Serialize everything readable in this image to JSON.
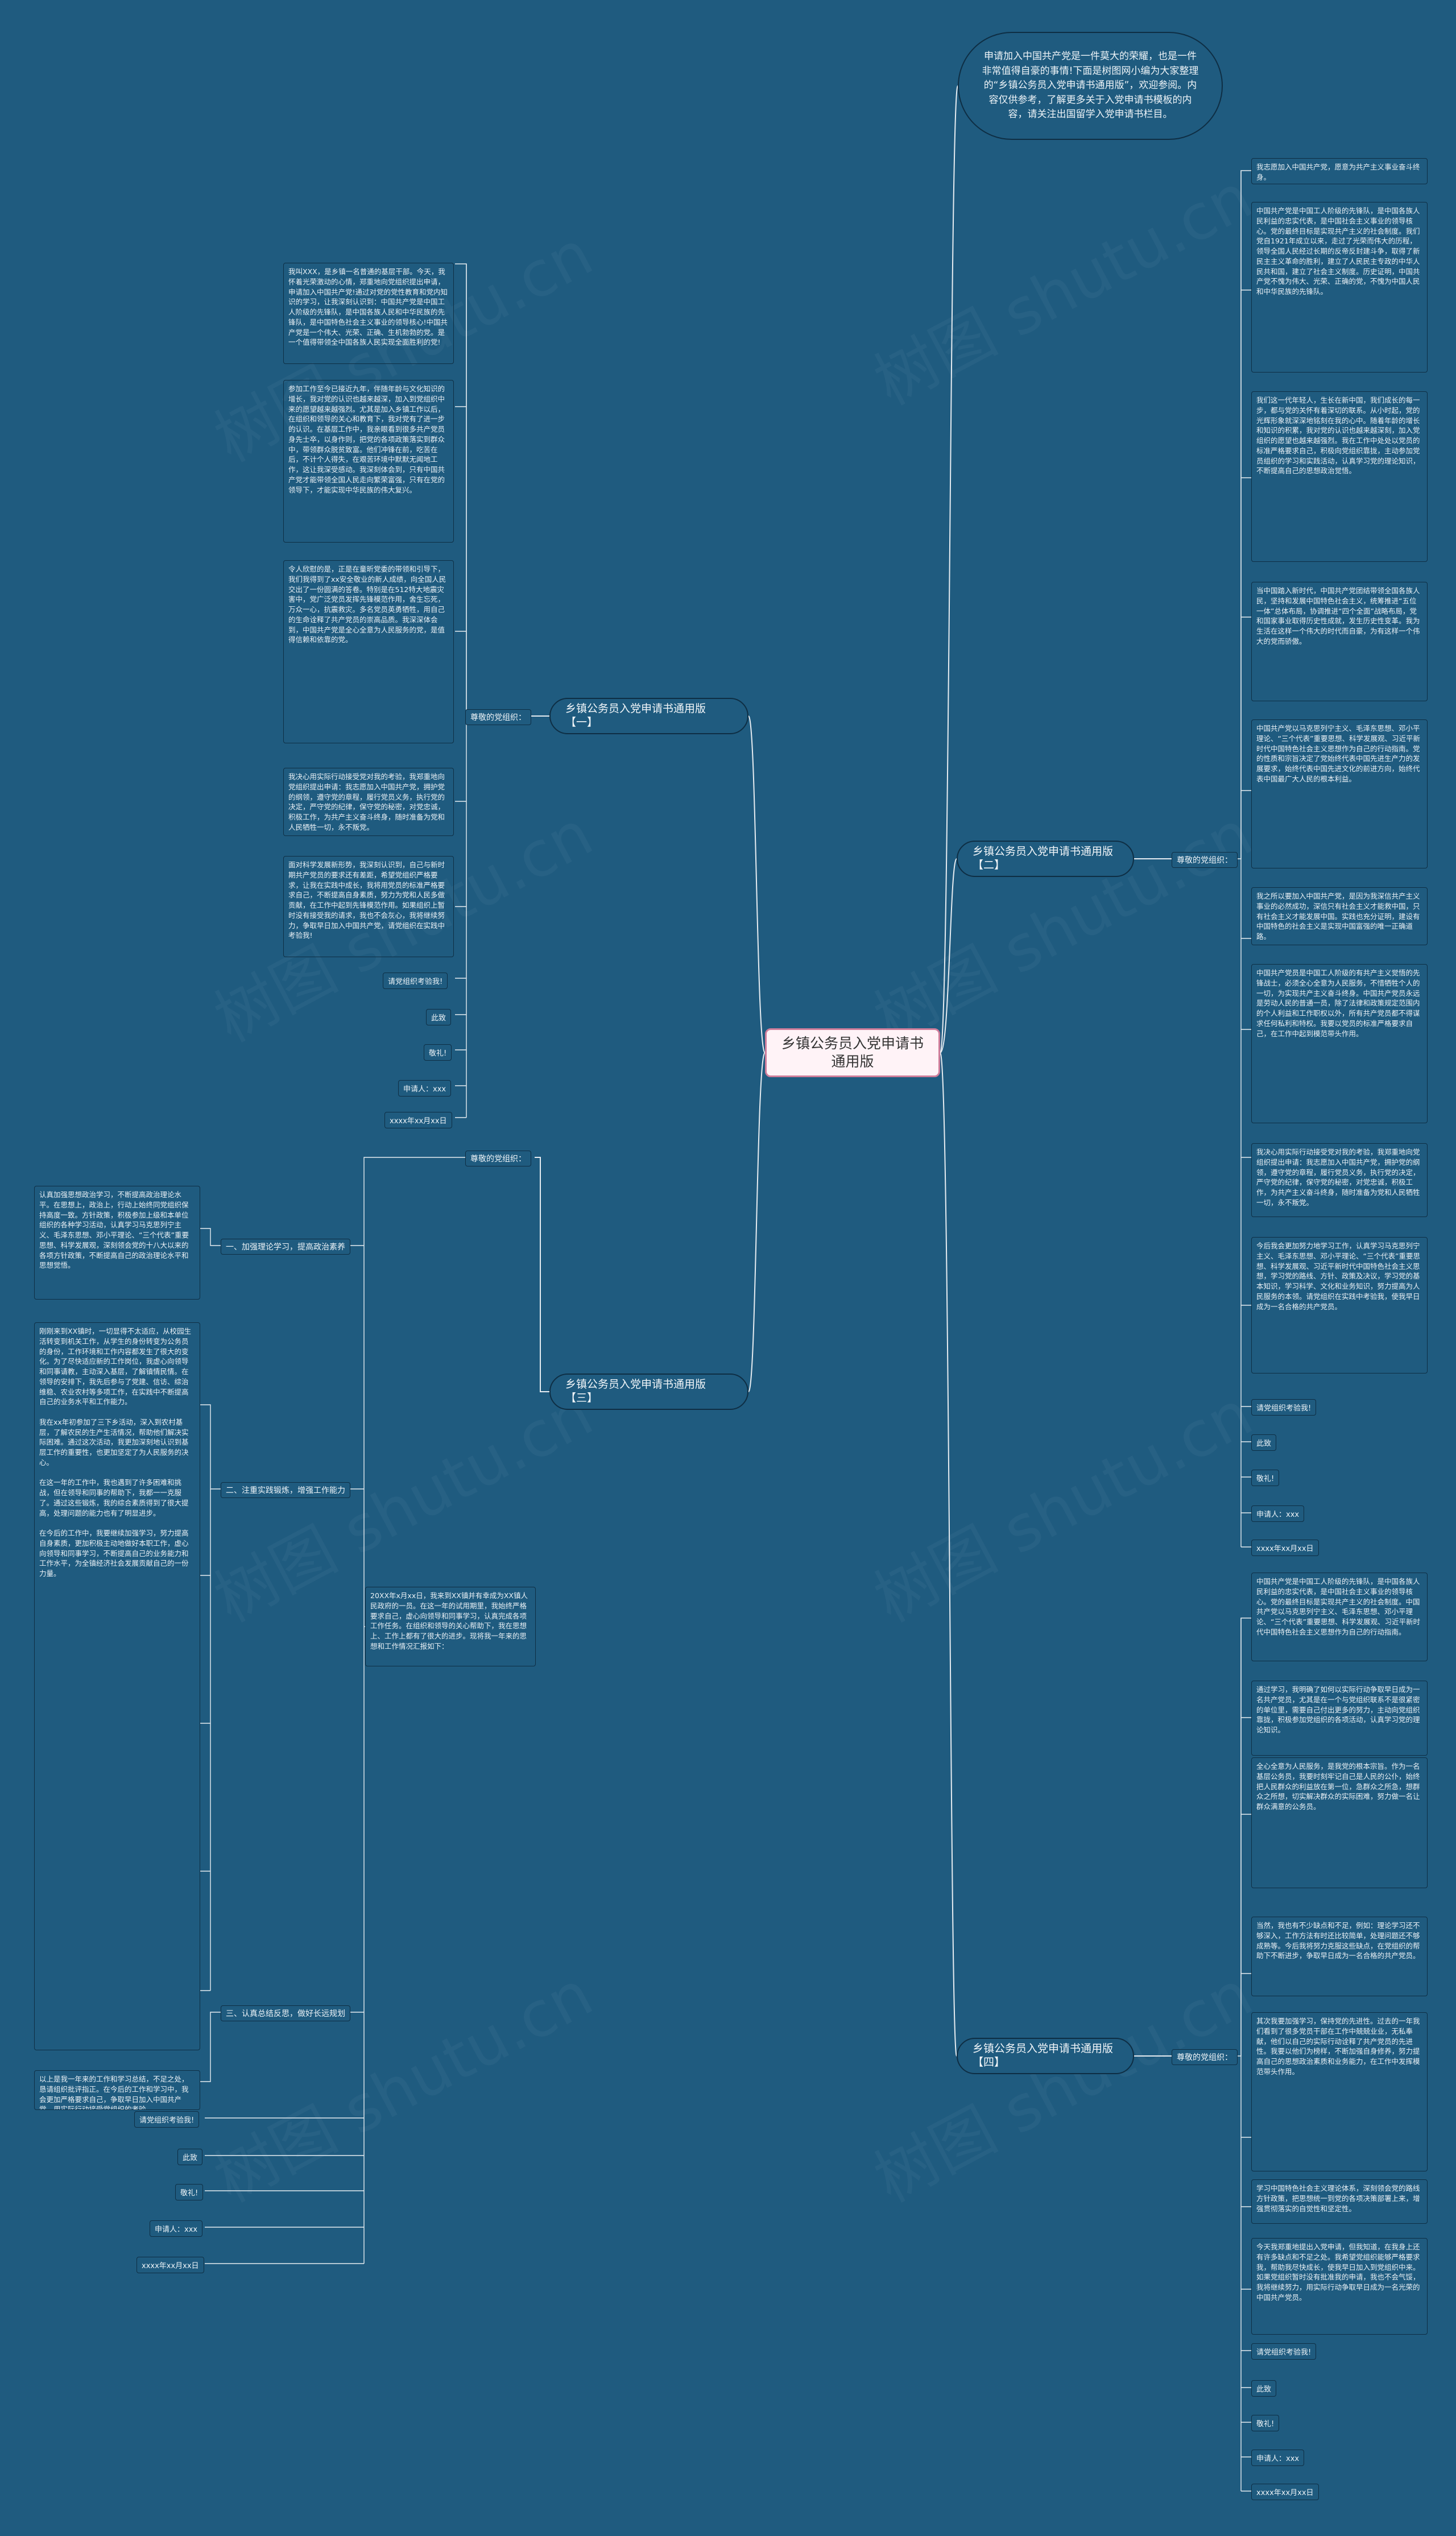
{
  "title": "乡镇公务员入党申请书通用版",
  "intro": "申请加入中国共产党是一件莫大的荣耀，也是一件非常值得自豪的事情!下面是树图网小编为大家整理的“乡镇公务员入党申请书通用版”，欢迎参阅。内容仅供参考，了解更多关于入党申请书模板的内容，请关注出国留学入党申请书栏目。",
  "branches": [
    {
      "label": "乡镇公务员入党申请书通用版【一】",
      "sub": "尊敬的党组织：",
      "paragraphs": [
        "我叫XXX，是乡镇一名普通的基层干部。今天，我怀着光荣激动的心情，郑重地向党组织提出申请，申请加入中国共产党!通过对党的党性教育和党内知识的学习，让我深刻认识到：中国共产党是中国工人阶级的先锋队，是中国各族人民和中华民族的先锋队，是中国特色社会主义事业的领导核心!中国共产党是一个伟大、光荣、正确、生机勃勃的党。是一个值得带领全中国各族人民实现全面胜利的党!",
        "参加工作至今已接近九年，伴随年龄与文化知识的增长，我对党的认识也越来越深，加入到党组织中来的愿望越来越强烈。尤其是加入乡镇工作以后，在组织和领导的关心和教育下，我对党有了进一步的认识。在基层工作中，我亲眼看到很多共产党员身先士卒，以身作则，把党的各项政策落实到群众中，带领群众脱贫致富。他们冲锋在前，吃苦在后，不计个人得失，在艰苦环境中默默无闻地工作，这让我深受感动。我深刻体会到，只有中国共产党才能带领全国人民走向繁荣富强，只有在党的领导下，才能实现中华民族的伟大复兴。",
        "令人欣慰的是，正是在童昕党委的带领和引导下，我们我得到了xx安全敬业的新人成绩，向全国人民交出了一份圆满的答卷。特别是在512特大地震灾害中，党广泛党员发挥先锋模范作用，舍生忘死，万众一心，抗震救灾。多名党员英勇牺牲，用自己的生命诠释了共产党员的崇高品质。我深深体会到，中国共产党是全心全意为人民服务的党，是值得信赖和依靠的党。",
        "我决心用实际行动接受党对我的考验，我郑重地向党组织提出申请：我志愿加入中国共产党，拥护党的纲领，遵守党的章程，履行党员义务，执行党的决定，严守党的纪律，保守党的秘密，对党忠诚，积极工作，为共产主义奋斗终身，随时准备为党和人民牺牲一切，永不叛党。",
        "面对科学发展新形势，我深刻认识到，自己与新时期共产党员的要求还有差距，希望党组织严格要求，让我在实践中成长，我将用党员的标准严格要求自己，不断提高自身素质，努力为党和人民多做贡献，在工作中起到先锋模范作用。如果组织上暂时没有接受我的请求，我也不会灰心，我将继续努力，争取早日加入中国共产党，请党组织在实践中考验我!"
      ],
      "closing": [
        "请党组织考验我!",
        "此致",
        "敬礼!",
        "申请人：xxx",
        "xxxx年xx月xx日"
      ]
    },
    {
      "label": "乡镇公务员入党申请书通用版【二】",
      "sub": "尊敬的党组织：",
      "paragraphs": [
        "我志愿加入中国共产党，愿意为共产主义事业奋斗终身。",
        "中国共产党是中国工人阶级的先锋队，是中国各族人民利益的忠实代表，是中国社会主义事业的领导核心。党的最终目标是实现共产主义的社会制度。我们党自1921年成立以来，走过了光荣而伟大的历程，领导全国人民经过长期的反帝反封建斗争，取得了新民主主义革命的胜利，建立了人民民主专政的中华人民共和国，建立了社会主义制度。历史证明，中国共产党不愧为伟大、光荣、正确的党，不愧为中国人民和中华民族的先锋队。",
        "我们这一代年轻人，生长在新中国，我们成长的每一步，都与党的关怀有着深切的联系。从小时起，党的光辉形象就深深地铭刻在我的心中。随着年龄的增长和知识的积累，我对党的认识也越来越深刻，加入党组织的愿望也越来越强烈。我在工作中处处以党员的标准严格要求自己，积极向党组织靠拢，主动参加党员组织的学习和实践活动，认真学习党的理论知识，不断提高自己的思想政治觉悟。",
        "当中国踏入新时代，中国共产党团结带领全国各族人民，坚持和发展中国特色社会主义，统筹推进“五位一体”总体布局，协调推进“四个全面”战略布局，党和国家事业取得历史性成就，发生历史性变革。我为生活在这样一个伟大的时代而自豪，为有这样一个伟大的党而骄傲。",
        "中国共产党以马克思列宁主义、毛泽东思想、邓小平理论、“三个代表”重要思想、科学发展观、习近平新时代中国特色社会主义思想作为自己的行动指南。党的性质和宗旨决定了党始终代表中国先进生产力的发展要求，始终代表中国先进文化的前进方向，始终代表中国最广大人民的根本利益。",
        "我之所以要加入中国共产党，是因为我深信共产主义事业的必然成功，深信只有社会主义才能救中国，只有社会主义才能发展中国。实践也充分证明，建设有中国特色的社会主义是实现中国富强的唯一正确道路。",
        "中国共产党员是中国工人阶级的有共产主义觉悟的先锋战士，必须全心全意为人民服务，不惜牺牲个人的一切，为实现共产主义奋斗终身。中国共产党员永远是劳动人民的普通一员，除了法律和政策规定范围内的个人利益和工作职权以外，所有共产党员都不得谋求任何私利和特权。我要以党员的标准严格要求自己，在工作中起到模范带头作用。",
        "我决心用实际行动接受党对我的考验，我郑重地向党组织提出申请：我志愿加入中国共产党，拥护党的纲领，遵守党的章程，履行党员义务，执行党的决定，严守党的纪律，保守党的秘密，对党忠诚，积极工作，为共产主义奋斗终身，随时准备为党和人民牺牲一切，永不叛党。",
        "今后我会更加努力地学习工作，认真学习马克思列宁主义、毛泽东思想、邓小平理论、“三个代表”重要思想、科学发展观、习近平新时代中国特色社会主义思想，学习党的路线、方针、政策及决议，学习党的基本知识，学习科学、文化和业务知识，努力提高为人民服务的本领。请党组织在实践中考验我，使我早日成为一名合格的共产党员。"
      ],
      "closing": [
        "请党组织考验我!",
        "此致",
        "敬礼!",
        "申请人：xxx",
        "xxxx年xx月xx日"
      ]
    },
    {
      "label": "乡镇公务员入党申请书通用版【三】",
      "sub": "尊敬的党组织：",
      "intro": "20XX年x月xx日，我来到XX镇并有幸成为XX镇人民政府的一员。在这一年的试用期里，我始终严格要求自己，虚心向领导和同事学习，认真完成各项工作任务。在组织和领导的关心帮助下，我在思想上、工作上都有了很大的进步。现将我一年来的思想和工作情况汇报如下：",
      "sections": [
        {
          "label": "一、加强理论学习，提高政治素养",
          "text": "认真加强思想政治学习，不断提高政治理论水平。在思想上，政治上，行动上始终同党组织保持高度一致。方针政策，积极参加上级和本单位组织的各种学习活动，认真学习马克思列宁主义、毛泽东思想、邓小平理论、“三个代表”重要思想、科学发展观，深刻领会党的十八大以来的各项方针政策，不断提高自己的政治理论水平和思想觉悟。"
        },
        {
          "label": "二、注重实践锻炼，增强工作能力",
          "text": "刚刚来到XX镇时，一切显得不太适应，从校园生活转变到机关工作，从学生的身份转变为公务员的身份，工作环境和工作内容都发生了很大的变化。为了尽快适应新的工作岗位，我虚心向领导和同事请教，主动深入基层，了解镇情民情。在领导的安排下，我先后参与了党建、信访、综治维稳、农业农村等多项工作，在实践中不断提高自己的业务水平和工作能力。\n\n我在xx年初参加了三下乡活动，深入到农村基层，了解农民的生产生活情况，帮助他们解决实际困难。通过这次活动，我更加深刻地认识到基层工作的重要性，也更加坚定了为人民服务的决心。\n\n在这一年的工作中，我也遇到了许多困难和挑战，但在领导和同事的帮助下，我都一一克服了。通过这些锻炼，我的综合素质得到了很大提高，处理问题的能力也有了明显进步。\n\n在今后的工作中，我要继续加强学习，努力提高自身素质，更加积极主动地做好本职工作，虚心向领导和同事学习，不断提高自己的业务能力和工作水平，为全镇经济社会发展贡献自己的一份力量。"
        },
        {
          "label": "三、认真总结反思，做好长远规划",
          "text": "以上是我一年来的工作和学习总结，不足之处，恳请组织批评指正。在今后的工作和学习中，我会更加严格要求自己，争取早日加入中国共产党，用实际行动接受党组织的考验。"
        }
      ],
      "closing": [
        "请党组织考验我!",
        "此致",
        "敬礼!",
        "申请人：xxx",
        "xxxx年xx月xx日"
      ]
    },
    {
      "label": "乡镇公务员入党申请书通用版【四】",
      "sub": "尊敬的党组织：",
      "paragraphs": [
        "中国共产党是中国工人阶级的先锋队，是中国各族人民利益的忠实代表，是中国社会主义事业的领导核心。党的最终目标是实现共产主义的社会制度。中国共产党以马克思列宁主义、毛泽东思想、邓小平理论、“三个代表”重要思想、科学发展观、习近平新时代中国特色社会主义思想作为自己的行动指南。",
        "通过学习，我明确了如何以实际行动争取早日成为一名共产党员，尤其是在一个与党组织联系不是很紧密的单位里，需要自己付出更多的努力，主动向党组织靠拢，积极参加党组织的各项活动，认真学习党的理论知识。",
        "全心全意为人民服务，是我党的根本宗旨。作为一名基层公务员，我要时刻牢记自己是人民的公仆，始终把人民群众的利益放在第一位，急群众之所急，想群众之所想，切实解决群众的实际困难，努力做一名让群众满意的公务员。",
        "当然，我也有不少缺点和不足，例如：理论学习还不够深入，工作方法有时还比较简单，处理问题还不够成熟等。今后我将努力克服这些缺点，在党组织的帮助下不断进步，争取早日成为一名合格的共产党员。",
        "其次我要加强学习，保持党的先进性。过去的一年我们看到了很多党员干部在工作中兢兢业业，无私奉献，他们以自己的实际行动诠释了共产党员的先进性。我要以他们为榜样，不断加强自身修养，努力提高自己的思想政治素质和业务能力，在工作中发挥模范带头作用。",
        "学习中国特色社会主义理论体系，深刻领会党的路线方针政策，把思想统一到党的各项决策部署上来，增强贯彻落实的自觉性和坚定性。",
        "今天我郑重地提出入党申请，但我知道，在我身上还有许多缺点和不足之处。我希望党组织能够严格要求我，帮助我尽快成长，使我早日加入到党组织中来。如果党组织暂时没有批准我的申请，我也不会气馁，我将继续努力，用实际行动争取早日成为一名光荣的中国共产党员。"
      ],
      "closing": [
        "请党组织考验我!",
        "此致",
        "敬礼!",
        "申请人：xxx",
        "xxxx年xx月xx日"
      ]
    }
  ]
}
